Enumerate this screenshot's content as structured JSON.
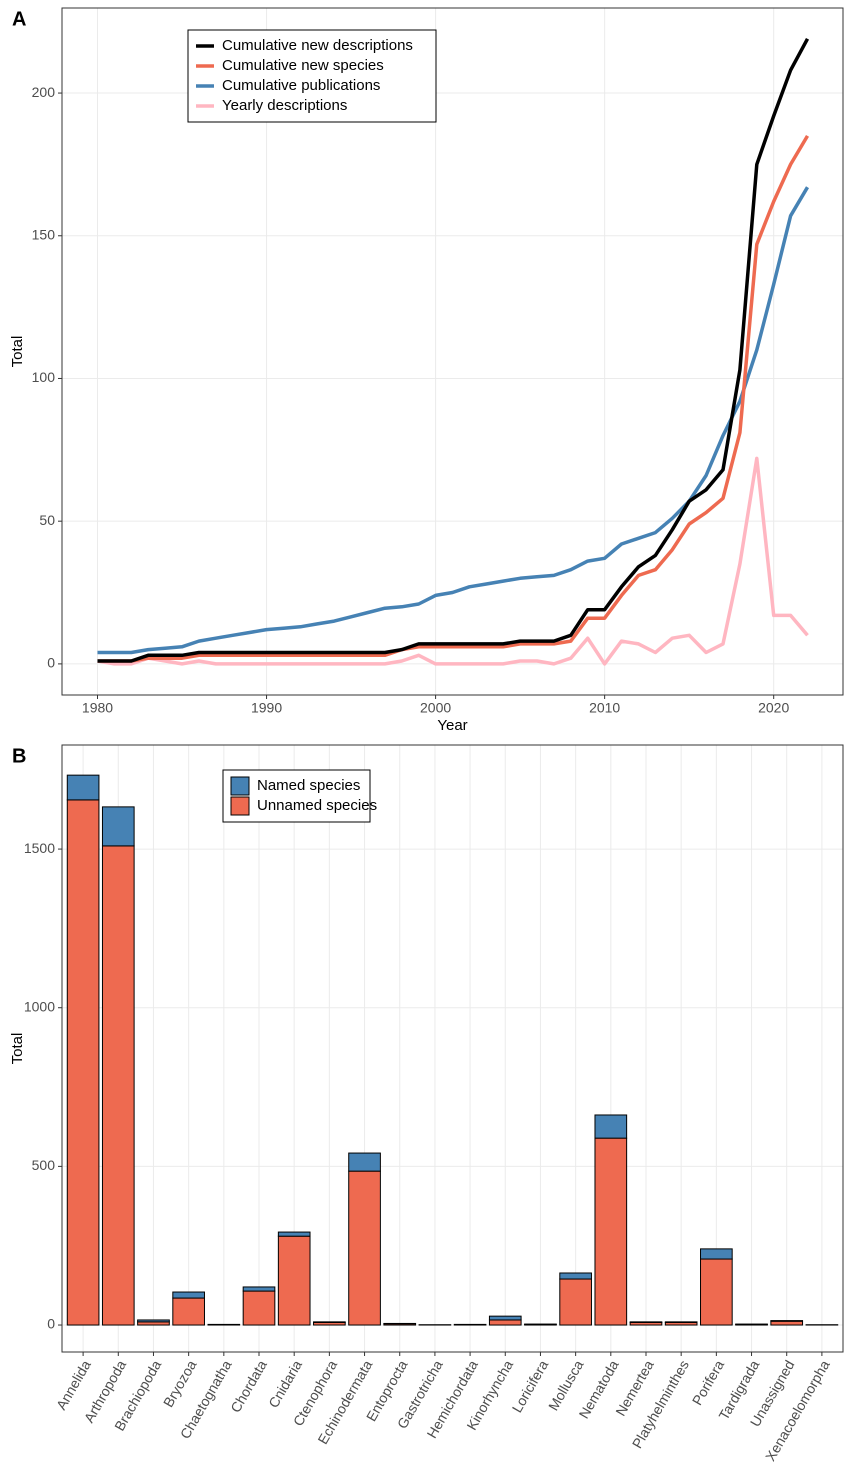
{
  "chart_data": [
    {
      "type": "line",
      "panel_label": "A",
      "x_label": "Year",
      "y_label": "Total",
      "x": [
        1980,
        1981,
        1982,
        1983,
        1984,
        1985,
        1986,
        1987,
        1988,
        1989,
        1990,
        1991,
        1992,
        1993,
        1994,
        1995,
        1996,
        1997,
        1998,
        1999,
        2000,
        2001,
        2002,
        2003,
        2004,
        2005,
        2006,
        2007,
        2008,
        2009,
        2010,
        2011,
        2012,
        2013,
        2014,
        2015,
        2016,
        2017,
        2018,
        2019,
        2020,
        2021,
        2022
      ],
      "series": [
        {
          "name": "Cumulative new descriptions",
          "color": "#000000",
          "values": [
            1,
            1,
            1,
            3,
            3,
            3,
            4,
            4,
            4,
            4,
            4,
            4,
            4,
            4,
            4,
            4,
            4,
            4,
            5,
            7,
            7,
            7,
            7,
            7,
            7,
            8,
            8,
            8,
            10,
            19,
            19,
            27,
            34,
            38,
            47,
            57,
            61,
            68,
            103,
            175,
            192,
            208,
            219
          ]
        },
        {
          "name": "Cumulative new species",
          "color": "#ee6a50",
          "values": [
            1,
            1,
            1,
            2,
            2,
            2,
            3,
            3,
            3,
            3,
            3,
            3,
            3,
            3,
            3,
            3,
            3,
            3,
            5,
            6,
            6,
            6,
            6,
            6,
            6,
            7,
            7,
            7,
            8,
            16,
            16,
            24,
            31,
            33,
            40,
            49,
            53,
            58,
            81,
            147,
            162,
            175,
            185
          ]
        },
        {
          "name": "Cumulative publications",
          "color": "#4682b4",
          "values": [
            4,
            4,
            4,
            5,
            5.5,
            6,
            8,
            9,
            10,
            11,
            12,
            12.5,
            13,
            14,
            15,
            16.5,
            18,
            19.5,
            20,
            21,
            24,
            25,
            27,
            28,
            29,
            30,
            30.5,
            31,
            33,
            36,
            37,
            42,
            44,
            46,
            51,
            57,
            66,
            80,
            92,
            110,
            133,
            157,
            167
          ]
        },
        {
          "name": "Yearly descriptions",
          "color": "#ffb6c1",
          "values": [
            1,
            0,
            0,
            2,
            1,
            0,
            1,
            0,
            0,
            0,
            0,
            0,
            0,
            0,
            0,
            0,
            0,
            0,
            1,
            3,
            0,
            0,
            0,
            0,
            0,
            1,
            1,
            0,
            2,
            9,
            0,
            8,
            7,
            4,
            9,
            10,
            4,
            7,
            35,
            72,
            17,
            17,
            10
          ]
        }
      ],
      "xlim": [
        1977.9,
        2024.1
      ],
      "xticks": [
        1980,
        1990,
        2000,
        2010,
        2020
      ],
      "ylim": [
        -10.9,
        229.8
      ],
      "yticks": [
        0,
        50,
        100,
        150,
        200
      ],
      "grid": true,
      "legend": "top-left"
    },
    {
      "type": "bar",
      "stacked": true,
      "panel_label": "B",
      "y_label": "Total",
      "categories": [
        "Annelida",
        "Arthropoda",
        "Brachiopoda",
        "Bryozoa",
        "Chaetognatha",
        "Chordata",
        "Cnidaria",
        "Ctenophora",
        "Echinodermata",
        "Entoprocta",
        "Gastrotricha",
        "Hemichordata",
        "Kinorhyncha",
        "Loricifera",
        "Mollusca",
        "Nematoda",
        "Nemertea",
        "Platyhelminthes",
        "Porifera",
        "Tardigrada",
        "Unassigned",
        "Xenacoelomorpha"
      ],
      "series": [
        {
          "name": "Unnamed species",
          "color": "#ee6a50",
          "values": [
            1655,
            1510,
            10,
            85,
            2,
            107,
            280,
            8,
            485,
            4,
            1,
            2,
            16,
            2,
            145,
            589,
            8,
            8,
            208,
            2,
            12,
            1
          ]
        },
        {
          "name": "Named species",
          "color": "#4682b4",
          "values": [
            78,
            123,
            6,
            19,
            0,
            13,
            13,
            2,
            57,
            1,
            0,
            0,
            12,
            1,
            19,
            73,
            2,
            2,
            32,
            1,
            2,
            0
          ]
        }
      ],
      "ylim": [
        -85,
        1828
      ],
      "yticks": [
        0,
        500,
        1000,
        1500
      ],
      "grid": true,
      "legend": "top-left"
    }
  ]
}
